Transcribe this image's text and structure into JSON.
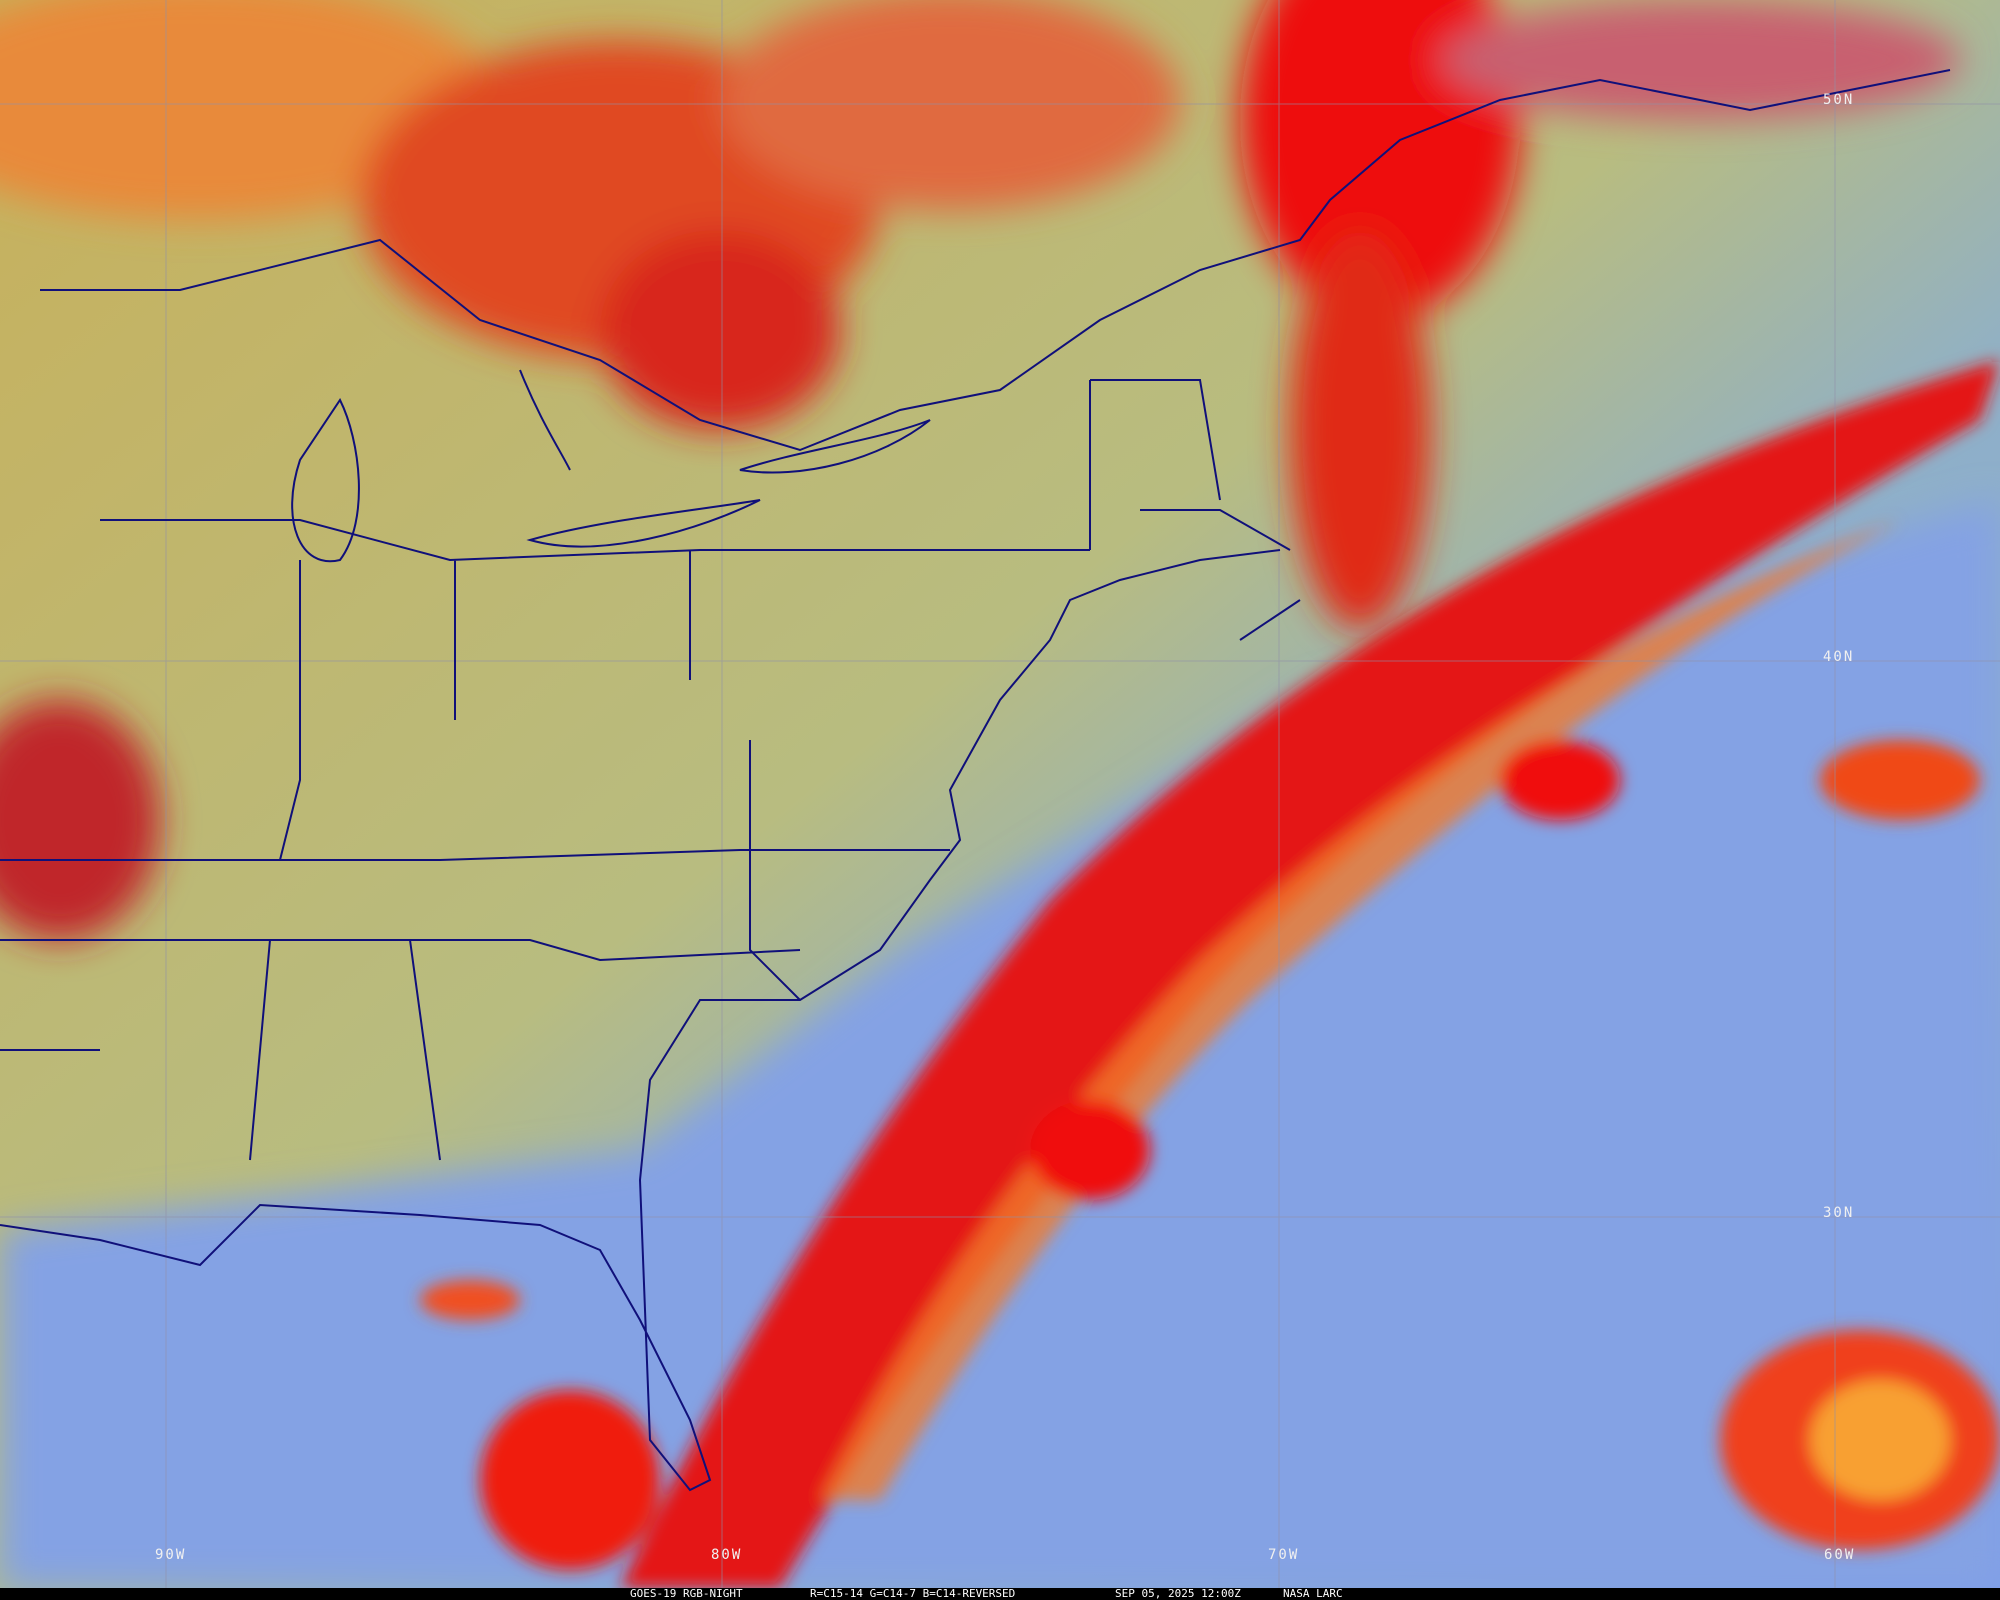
{
  "caption": {
    "product": "GOES-19 RGB-NIGHT",
    "channels": "R=C15-14 G=C14-7 B=C14-REVERSED",
    "datetime": "SEP 05, 2025 12:00Z",
    "source": "NASA LARC"
  },
  "grid": {
    "latitudes": [
      "50N",
      "40N",
      "30N"
    ],
    "longitudes": [
      "90W",
      "80W",
      "70W",
      "60W"
    ]
  },
  "colors": {
    "boundary": "#10107a",
    "clear_land": "#b8b878",
    "clear_ocean": "#7f9ee8",
    "high_cloud": "#e80c0c",
    "mid_cloud": "#f08a2a",
    "gridline": "#9090a8"
  }
}
